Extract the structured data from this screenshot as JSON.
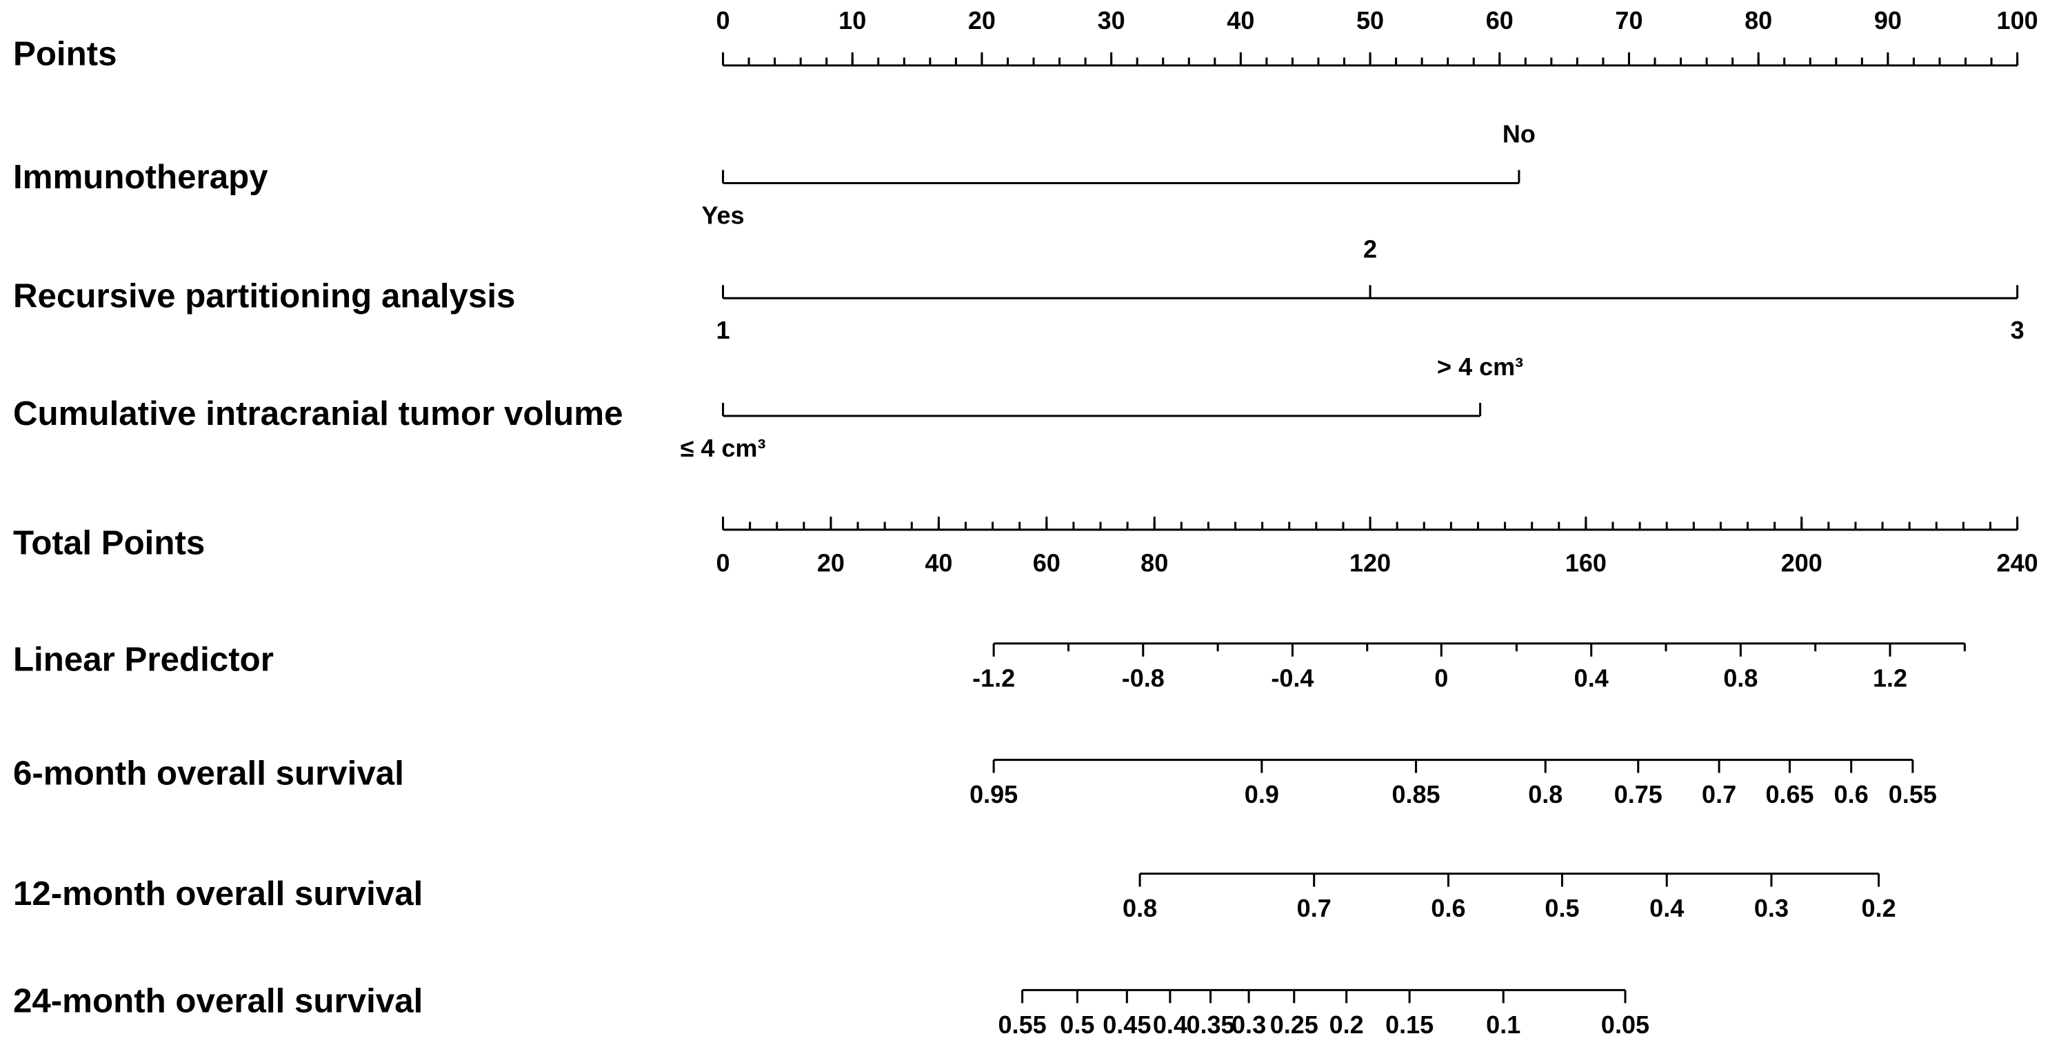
{
  "chart_data": {
    "type": "nomogram",
    "points_axis": {
      "label": "Points",
      "xlim": [
        0,
        100
      ],
      "xticks": [
        0,
        10,
        20,
        30,
        40,
        50,
        60,
        70,
        80,
        90,
        100
      ],
      "minor_step": 2
    },
    "variables": [
      {
        "label": "Immunotherapy",
        "levels": [
          "Yes",
          "No"
        ],
        "points": [
          0,
          61.5
        ]
      },
      {
        "label": "Recursive partitioning analysis",
        "levels": [
          "1",
          "2",
          "3"
        ],
        "points": [
          0,
          50,
          100
        ]
      },
      {
        "label": "Cumulative intracranial tumor volume",
        "levels": [
          "≤ 4 cm³",
          "> 4 cm³"
        ],
        "points": [
          0,
          58.5
        ]
      }
    ],
    "total_points_axis": {
      "label": "Total Points",
      "xlim": [
        0,
        240
      ],
      "xticks": [
        0,
        20,
        40,
        60,
        80,
        120,
        160,
        200,
        240
      ],
      "minor_step": 5
    },
    "outcome_axes": [
      {
        "label": "Linear Predictor",
        "ticks": [
          -1.2,
          -0.8,
          -0.4,
          0,
          0.4,
          0.8,
          1.2
        ],
        "tick_points": [
          50.2,
          77.9,
          105.6,
          133.2,
          161,
          188.7,
          216.4
        ],
        "minor_ticks": [
          -1,
          -0.6,
          -0.2,
          0.2,
          0.6,
          1,
          1.4
        ]
      },
      {
        "label": "6-month overall survival",
        "ticks": [
          0.95,
          0.9,
          0.85,
          0.8,
          0.75,
          0.7,
          0.65,
          0.6,
          0.55
        ],
        "tick_points": [
          50.2,
          99.9,
          128.5,
          152.5,
          169.7,
          184.7,
          197.8,
          209.2,
          220.6
        ]
      },
      {
        "label": "12-month overall survival",
        "ticks": [
          0.8,
          0.7,
          0.6,
          0.5,
          0.4,
          0.3,
          0.2
        ],
        "tick_points": [
          77.3,
          109.6,
          134.5,
          155.6,
          175,
          194.4,
          214.3
        ]
      },
      {
        "label": "24-month overall survival",
        "ticks": [
          0.55,
          0.5,
          0.45,
          0.4,
          0.35,
          0.3,
          0.25,
          0.2,
          0.15,
          0.1,
          0.05
        ],
        "tick_points": [
          55.5,
          65.7,
          74.9,
          82.9,
          90.4,
          97.5,
          105.9,
          115.6,
          127.3,
          144.7,
          167.3
        ]
      }
    ]
  }
}
